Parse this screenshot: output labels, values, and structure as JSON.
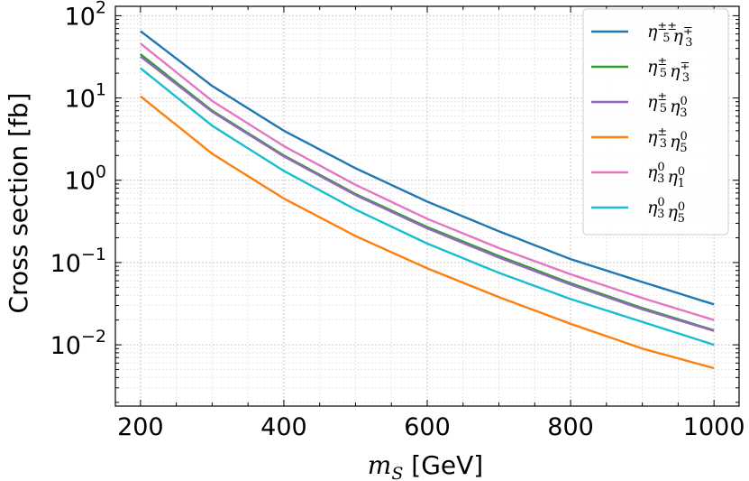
{
  "chart_data": {
    "type": "line",
    "xlabel_main": "m",
    "xlabel_sub": "S",
    "xlabel_unit": " [GeV]",
    "ylabel": "Cross section [fb]",
    "yscale": "log",
    "xlim": [
      165,
      1035
    ],
    "ylim": [
      0.0018,
      130
    ],
    "grid": true,
    "legend_position": "top-right",
    "x_ticks": [
      200,
      400,
      600,
      800,
      1000
    ],
    "y_ticks": [
      {
        "value": 0.01,
        "base": "10",
        "exp": "−2"
      },
      {
        "value": 0.1,
        "base": "10",
        "exp": "−1"
      },
      {
        "value": 1,
        "base": "10",
        "exp": "0"
      },
      {
        "value": 10,
        "base": "10",
        "exp": "1"
      },
      {
        "value": 100,
        "base": "10",
        "exp": "2"
      }
    ],
    "series": [
      {
        "name": "η5±±η3∓",
        "legend": [
          [
            "η",
            "5",
            "±±"
          ],
          [
            "η",
            "3",
            "∓"
          ]
        ],
        "color": "#1f77b4",
        "x": [
          200,
          300,
          400,
          500,
          600,
          700,
          800,
          900,
          1000
        ],
        "y": [
          65,
          14,
          4.0,
          1.4,
          0.55,
          0.24,
          0.11,
          0.058,
          0.031
        ]
      },
      {
        "name": "η5±η3∓",
        "legend": [
          [
            "η",
            "5",
            "±"
          ],
          [
            "η",
            "3",
            "∓"
          ]
        ],
        "color": "#2ca02c",
        "x": [
          200,
          300,
          400,
          500,
          600,
          700,
          800,
          900,
          1000
        ],
        "y": [
          34,
          7.0,
          2.0,
          0.68,
          0.27,
          0.12,
          0.056,
          0.028,
          0.015
        ]
      },
      {
        "name": "η5±η30",
        "legend": [
          [
            "η",
            "5",
            "±"
          ],
          [
            "η",
            "3",
            "0"
          ]
        ],
        "color": "#9467bd",
        "x": [
          200,
          300,
          400,
          500,
          600,
          700,
          800,
          900,
          1000
        ],
        "y": [
          32,
          6.8,
          1.95,
          0.66,
          0.26,
          0.115,
          0.054,
          0.027,
          0.0148
        ]
      },
      {
        "name": "η3±η50",
        "legend": [
          [
            "η",
            "3",
            "±"
          ],
          [
            "η",
            "5",
            "0"
          ]
        ],
        "color": "#ff7f0e",
        "x": [
          200,
          300,
          400,
          500,
          600,
          700,
          800,
          900,
          1000
        ],
        "y": [
          10.5,
          2.1,
          0.6,
          0.21,
          0.085,
          0.038,
          0.018,
          0.009,
          0.0052
        ]
      },
      {
        "name": "η30η10",
        "legend": [
          [
            "η",
            "3",
            "0"
          ],
          [
            "η",
            "1",
            "0"
          ]
        ],
        "color": "#e377c2",
        "x": [
          200,
          300,
          400,
          500,
          600,
          700,
          800,
          900,
          1000
        ],
        "y": [
          46,
          9.2,
          2.6,
          0.88,
          0.34,
          0.15,
          0.072,
          0.037,
          0.02
        ]
      },
      {
        "name": "η30η50",
        "legend": [
          [
            "η",
            "3",
            "0"
          ],
          [
            "η",
            "5",
            "0"
          ]
        ],
        "color": "#17becf",
        "x": [
          200,
          300,
          400,
          500,
          600,
          700,
          800,
          900,
          1000
        ],
        "y": [
          23,
          4.6,
          1.3,
          0.44,
          0.17,
          0.075,
          0.036,
          0.019,
          0.01
        ]
      }
    ]
  }
}
